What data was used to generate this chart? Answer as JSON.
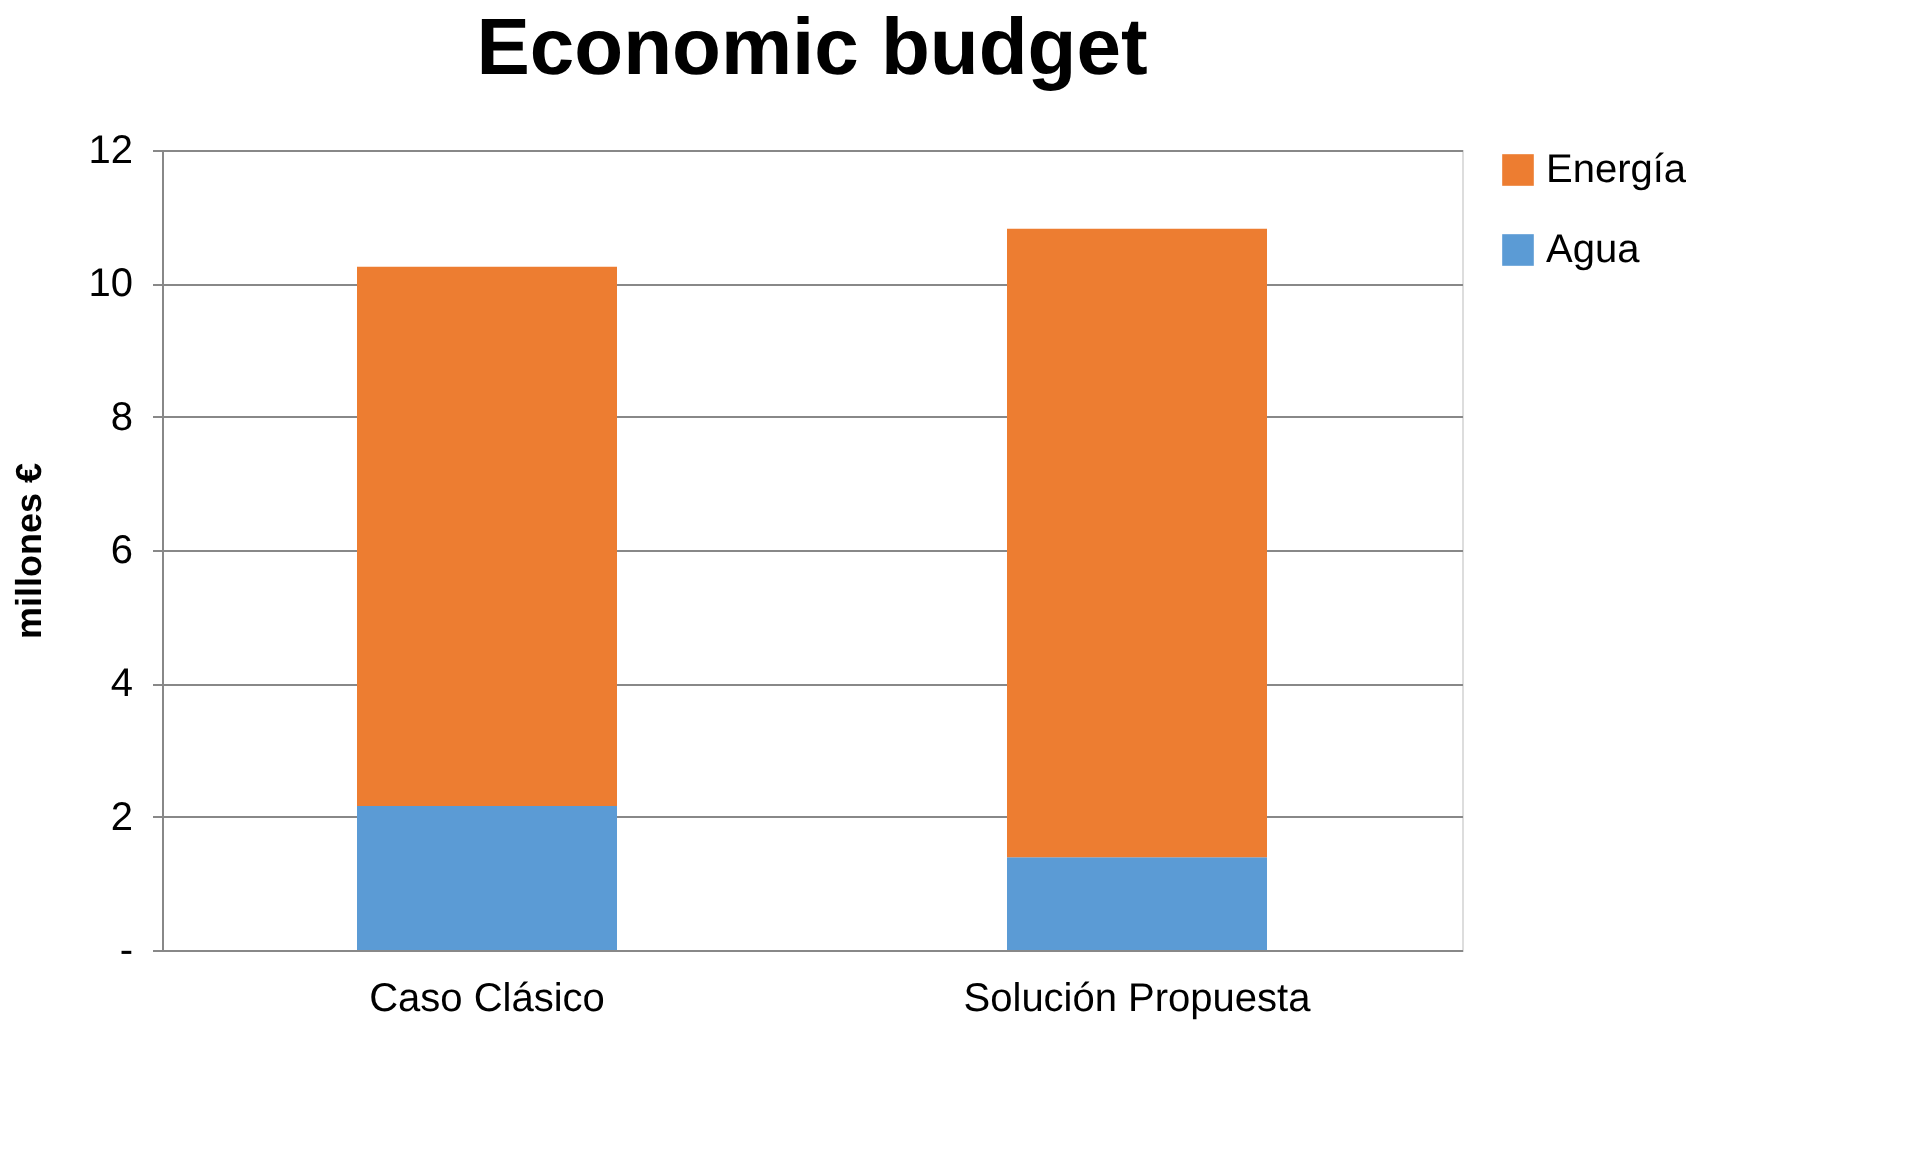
{
  "chart_data": {
    "type": "bar",
    "title": "Economic budget",
    "ylabel": "millones €",
    "categories": [
      "Caso Clásico",
      "Solución Propuesta"
    ],
    "series": [
      {
        "name": "Agua",
        "color": "#5b9bd5",
        "values": [
          2.16,
          1.39
        ]
      },
      {
        "name": "Energía",
        "color": "#ed7d31",
        "values": [
          8.09,
          9.43
        ]
      }
    ],
    "stacked": true,
    "ylim": [
      0,
      12
    ],
    "yticks": [
      {
        "value": 0,
        "label": "-"
      },
      2,
      4,
      6,
      8,
      10,
      12
    ],
    "grid": "y",
    "legend": "right"
  }
}
